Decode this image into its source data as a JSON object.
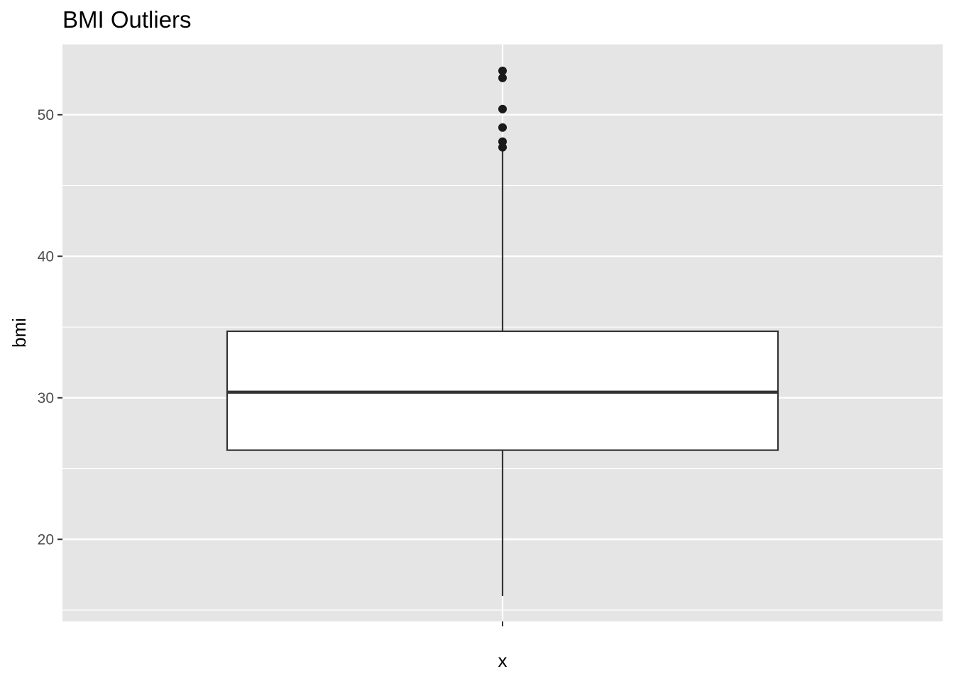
{
  "chart_data": {
    "type": "boxplot",
    "title": "BMI Outliers",
    "xlabel": "x",
    "ylabel": "bmi",
    "x_tick_labels": [
      ""
    ],
    "y_ticks": [
      20,
      30,
      40,
      50
    ],
    "ylim": [
      14.2,
      55.0
    ],
    "grid": true,
    "box": {
      "category": "",
      "q1": 26.3,
      "median": 30.4,
      "q3": 34.7,
      "whisker_low": 16.0,
      "whisker_high": 47.5
    },
    "outliers": [
      53.1,
      52.6,
      50.4,
      49.1,
      48.1,
      47.7
    ],
    "colors": {
      "panel_background": "#e5e5e5",
      "grid_line": "#ffffff",
      "box_fill": "#ffffff",
      "box_line": "#333333",
      "point": "#1a1a1a",
      "tick_text": "#4d4d4d",
      "axis_title": "#000000"
    }
  }
}
